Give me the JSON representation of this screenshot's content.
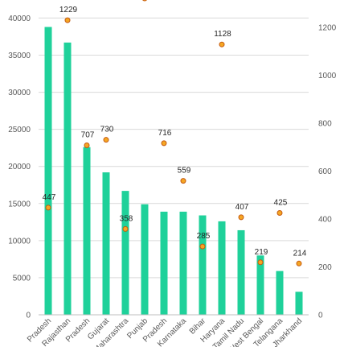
{
  "chart_data": {
    "type": "bar",
    "categories": [
      "Pradesh",
      "Rajasthan",
      "Pradesh",
      "Gujarat",
      "Maharashtra",
      "Punjab",
      "Pradesh",
      "Karnataka",
      "Bihar",
      "Haryana",
      "Tamil Nadu",
      "West Bengal",
      "Telangana",
      "Jharkhand"
    ],
    "series": [
      {
        "type": "bar",
        "axis": "left",
        "values": [
          38800,
          36700,
          22600,
          19200,
          16700,
          14900,
          13900,
          13900,
          13400,
          12600,
          11400,
          8000,
          5900,
          3100
        ]
      },
      {
        "type": "scatter",
        "axis": "right",
        "values": [
          447,
          1229,
          707,
          730,
          358,
          1320,
          716,
          559,
          285,
          1128,
          407,
          219,
          425,
          214
        ],
        "labels": [
          "447",
          "1229",
          "707",
          "730",
          "358",
          "",
          "716",
          "559",
          "285",
          "1128",
          "407",
          "219",
          "425",
          "214"
        ]
      }
    ],
    "ylim": [
      0,
      42000
    ],
    "y_ticks": [
      0,
      5000,
      10000,
      15000,
      20000,
      25000,
      30000,
      35000,
      40000
    ],
    "y2lim": [
      0,
      1300
    ],
    "y2_ticks": [
      0,
      200,
      400,
      600,
      800,
      1000,
      1200
    ],
    "grid": true,
    "colors": {
      "bar": "#1fd19a",
      "point": "#f5a623",
      "point_edge": "#c55a11"
    }
  }
}
